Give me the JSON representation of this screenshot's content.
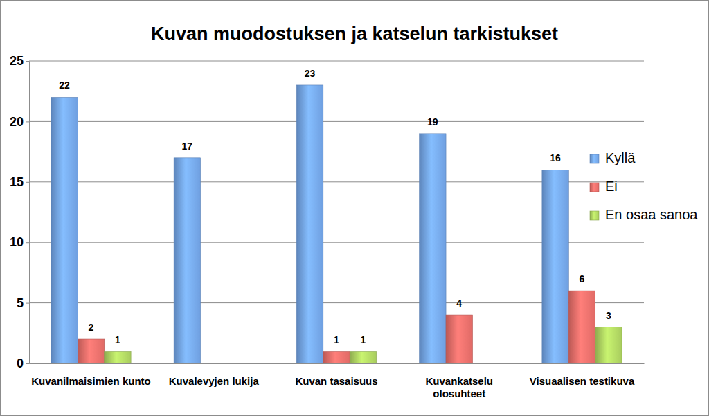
{
  "chart_data": {
    "type": "bar",
    "title": "Kuvan muodostuksen ja katselun tarkistukset",
    "categories": [
      "Kuvanilmaisimien kunto",
      "Kuvalevyjen lukija",
      "Kuvan tasaisuus",
      "Kuvankatselu olosuhteet",
      "Visuaalisen testikuva"
    ],
    "series": [
      {
        "name": "Kyllä",
        "color": "#6f9fe0",
        "values": [
          22,
          17,
          23,
          19,
          16
        ]
      },
      {
        "name": "Ei",
        "color": "#e06a66",
        "values": [
          2,
          null,
          1,
          4,
          6
        ]
      },
      {
        "name": "En osaa sanoa",
        "color": "#a8cc5e",
        "values": [
          1,
          null,
          1,
          null,
          3
        ]
      }
    ],
    "ylim": [
      0,
      25
    ],
    "yticks": [
      0,
      5,
      10,
      15,
      20,
      25
    ],
    "grid": true,
    "legend": "right",
    "data_labels": true
  }
}
